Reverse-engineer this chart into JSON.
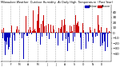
{
  "title": "Milwaukee Weather  Outdoor Humidity  At Daily High  Temperature  (Past Year)",
  "n_points": 365,
  "seed": 42,
  "ylim": [
    -55,
    55
  ],
  "yticks": [
    -40,
    -30,
    -20,
    -10,
    0,
    10,
    20,
    30,
    40
  ],
  "bar_width": 0.85,
  "color_above": "#cc0000",
  "color_below": "#0000bb",
  "legend_above": "Above",
  "legend_below": "Below",
  "background_color": "#ffffff",
  "grid_color": "#888888",
  "ytick_fontsize": 3.0,
  "xtick_fontsize": 2.2,
  "title_fontsize": 2.5,
  "legend_fontsize": 2.5
}
